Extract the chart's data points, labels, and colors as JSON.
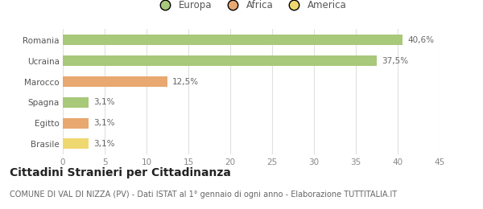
{
  "categories": [
    "Romania",
    "Ucraina",
    "Marocco",
    "Spagna",
    "Egitto",
    "Brasile"
  ],
  "values": [
    40.6,
    37.5,
    12.5,
    3.1,
    3.1,
    3.1
  ],
  "labels": [
    "40,6%",
    "37,5%",
    "12,5%",
    "3,1%",
    "3,1%",
    "3,1%"
  ],
  "bar_colors": [
    "#a8c87a",
    "#a8c87a",
    "#e8a870",
    "#a8c87a",
    "#e8a870",
    "#f0d870"
  ],
  "legend_items": [
    {
      "label": "Europa",
      "color": "#a8c87a"
    },
    {
      "label": "Africa",
      "color": "#e8a870"
    },
    {
      "label": "America",
      "color": "#f0d870"
    }
  ],
  "xlim": [
    0,
    45
  ],
  "xticks": [
    0,
    5,
    10,
    15,
    20,
    25,
    30,
    35,
    40,
    45
  ],
  "title": "Cittadini Stranieri per Cittadinanza",
  "subtitle": "COMUNE DI VAL DI NIZZA (PV) - Dati ISTAT al 1° gennaio di ogni anno - Elaborazione TUTTITALIA.IT",
  "background_color": "#ffffff",
  "grid_color": "#e0e0e0",
  "title_fontsize": 10,
  "subtitle_fontsize": 7,
  "label_fontsize": 7.5,
  "tick_fontsize": 7.5,
  "legend_fontsize": 8.5,
  "bar_height": 0.5
}
